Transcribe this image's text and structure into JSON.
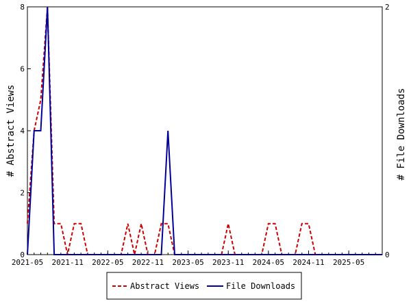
{
  "chart_data": {
    "type": "line",
    "title": "",
    "y_left_label": "# Abstract Views",
    "y_right_label": "# File Downloads",
    "y_left_lim": [
      0,
      8
    ],
    "y_left_ticks": [
      "0",
      "2",
      "4",
      "6",
      "8"
    ],
    "y_left_tick_values": [
      0,
      2,
      4,
      6,
      8
    ],
    "y_right_lim": [
      0,
      2
    ],
    "y_right_ticks": [
      "0",
      "2"
    ],
    "y_right_tick_values": [
      0,
      2
    ],
    "x_range": [
      "2021-05",
      "2025-10"
    ],
    "x_ticks": [
      "2021-05",
      "2021-11",
      "2022-05",
      "2022-11",
      "2023-05",
      "2023-11",
      "2024-05",
      "2024-11",
      "2025-05"
    ],
    "legend_position": "bottom",
    "grid": false,
    "series": [
      {
        "name": "Abstract Views",
        "axis": "left",
        "color": "#cc0000",
        "style": "dashed",
        "points": [
          [
            "2021-05",
            1
          ],
          [
            "2021-06",
            4
          ],
          [
            "2021-07",
            5
          ],
          [
            "2021-08",
            8
          ],
          [
            "2021-09",
            1
          ],
          [
            "2021-10",
            1
          ],
          [
            "2021-11",
            0
          ],
          [
            "2021-12",
            1
          ],
          [
            "2022-01",
            1
          ],
          [
            "2022-02",
            0
          ],
          [
            "2022-03",
            0
          ],
          [
            "2022-04",
            0
          ],
          [
            "2022-05",
            0
          ],
          [
            "2022-06",
            0
          ],
          [
            "2022-07",
            0
          ],
          [
            "2022-08",
            1
          ],
          [
            "2022-09",
            0
          ],
          [
            "2022-10",
            1
          ],
          [
            "2022-11",
            0
          ],
          [
            "2022-12",
            0
          ],
          [
            "2023-01",
            1
          ],
          [
            "2023-02",
            1
          ],
          [
            "2023-03",
            0
          ],
          [
            "2023-04",
            0
          ],
          [
            "2023-05",
            0
          ],
          [
            "2023-06",
            0
          ],
          [
            "2023-07",
            0
          ],
          [
            "2023-08",
            0
          ],
          [
            "2023-09",
            0
          ],
          [
            "2023-10",
            0
          ],
          [
            "2023-11",
            1
          ],
          [
            "2023-12",
            0
          ],
          [
            "2024-01",
            0
          ],
          [
            "2024-02",
            0
          ],
          [
            "2024-03",
            0
          ],
          [
            "2024-04",
            0
          ],
          [
            "2024-05",
            1
          ],
          [
            "2024-06",
            1
          ],
          [
            "2024-07",
            0
          ],
          [
            "2024-08",
            0
          ],
          [
            "2024-09",
            0
          ],
          [
            "2024-10",
            1
          ],
          [
            "2024-11",
            1
          ],
          [
            "2024-12",
            0
          ],
          [
            "2025-01",
            0
          ],
          [
            "2025-02",
            0
          ],
          [
            "2025-03",
            0
          ],
          [
            "2025-04",
            0
          ],
          [
            "2025-05",
            0
          ],
          [
            "2025-06",
            0
          ],
          [
            "2025-07",
            0
          ],
          [
            "2025-08",
            0
          ],
          [
            "2025-09",
            0
          ],
          [
            "2025-10",
            0
          ]
        ]
      },
      {
        "name": "File Downloads",
        "axis": "right",
        "color": "#000099",
        "style": "solid",
        "points": [
          [
            "2021-05",
            0
          ],
          [
            "2021-06",
            1
          ],
          [
            "2021-07",
            1
          ],
          [
            "2021-08",
            2
          ],
          [
            "2021-09",
            0
          ],
          [
            "2021-10",
            0
          ],
          [
            "2021-11",
            0
          ],
          [
            "2021-12",
            0
          ],
          [
            "2022-01",
            0
          ],
          [
            "2022-02",
            0
          ],
          [
            "2022-03",
            0
          ],
          [
            "2022-04",
            0
          ],
          [
            "2022-05",
            0
          ],
          [
            "2022-06",
            0
          ],
          [
            "2022-07",
            0
          ],
          [
            "2022-08",
            0
          ],
          [
            "2022-09",
            0
          ],
          [
            "2022-10",
            0
          ],
          [
            "2022-11",
            0
          ],
          [
            "2022-12",
            0
          ],
          [
            "2023-01",
            0
          ],
          [
            "2023-02",
            1
          ],
          [
            "2023-03",
            0
          ],
          [
            "2023-04",
            0
          ],
          [
            "2023-05",
            0
          ],
          [
            "2023-06",
            0
          ],
          [
            "2023-07",
            0
          ],
          [
            "2023-08",
            0
          ],
          [
            "2023-09",
            0
          ],
          [
            "2023-10",
            0
          ],
          [
            "2023-11",
            0
          ],
          [
            "2023-12",
            0
          ],
          [
            "2024-01",
            0
          ],
          [
            "2024-02",
            0
          ],
          [
            "2024-03",
            0
          ],
          [
            "2024-04",
            0
          ],
          [
            "2024-05",
            0
          ],
          [
            "2024-06",
            0
          ],
          [
            "2024-07",
            0
          ],
          [
            "2024-08",
            0
          ],
          [
            "2024-09",
            0
          ],
          [
            "2024-10",
            0
          ],
          [
            "2024-11",
            0
          ],
          [
            "2024-12",
            0
          ],
          [
            "2025-01",
            0
          ],
          [
            "2025-02",
            0
          ],
          [
            "2025-03",
            0
          ],
          [
            "2025-04",
            0
          ],
          [
            "2025-05",
            0
          ],
          [
            "2025-06",
            0
          ],
          [
            "2025-07",
            0
          ],
          [
            "2025-08",
            0
          ],
          [
            "2025-09",
            0
          ],
          [
            "2025-10",
            0
          ]
        ]
      }
    ]
  }
}
